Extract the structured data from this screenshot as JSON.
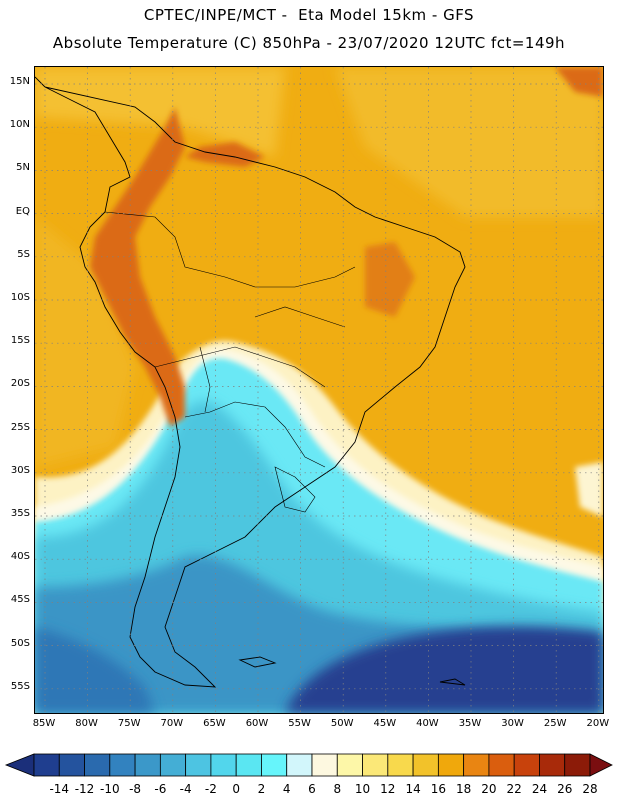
{
  "header": {
    "line1": "CPTEC/INPE/MCT -  Eta Model 15km - GFS",
    "line2": "Absolute Temperature (C) 850hPa - 23/07/2020 12UTC fct=149h"
  },
  "axes": {
    "lat_labels": [
      "15N",
      "10N",
      "5N",
      "EQ",
      "5S",
      "10S",
      "15S",
      "20S",
      "25S",
      "30S",
      "35S",
      "40S",
      "45S",
      "50S",
      "55S"
    ],
    "lon_labels": [
      "85W",
      "80W",
      "75W",
      "70W",
      "65W",
      "60W",
      "55W",
      "50W",
      "45W",
      "40W",
      "35W",
      "30W",
      "25W",
      "20W"
    ]
  },
  "colorbar": {
    "labels": [
      "-14",
      "-12",
      "-10",
      "-8",
      "-6",
      "-4",
      "-2",
      "0",
      "2",
      "4",
      "6",
      "8",
      "10",
      "12",
      "14",
      "16",
      "18",
      "20",
      "22",
      "24",
      "26",
      "28"
    ],
    "colors": [
      "#1f3e8f",
      "#24539e",
      "#2a6aae",
      "#3282bf",
      "#3b98c9",
      "#44aed5",
      "#4dc4e2",
      "#52d6ec",
      "#5ae6f2",
      "#66f5fb",
      "#d2f6fb",
      "#fdf8e0",
      "#fdf7a8",
      "#fbe878",
      "#f8d94c",
      "#f2c22a",
      "#f0a80c",
      "#e98512",
      "#da5e0e",
      "#c8420c",
      "#a82a0a",
      "#8c1b08"
    ],
    "under_color": "#1b2f7a",
    "over_color": "#7a0e10"
  }
}
